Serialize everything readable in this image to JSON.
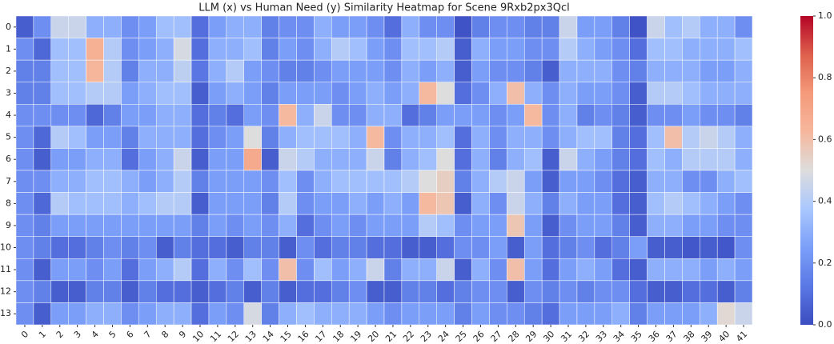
{
  "chart_data": {
    "type": "heatmap",
    "title": "LLM (x) vs Human Need (y) Similarity Heatmap for Scene 9Rxb2px3Qcl",
    "x_categories": [
      "0",
      "1",
      "2",
      "3",
      "4",
      "5",
      "6",
      "7",
      "8",
      "9",
      "10",
      "11",
      "12",
      "13",
      "14",
      "15",
      "16",
      "17",
      "18",
      "19",
      "20",
      "21",
      "22",
      "23",
      "24",
      "25",
      "26",
      "27",
      "28",
      "29",
      "30",
      "31",
      "32",
      "33",
      "34",
      "35",
      "36",
      "37",
      "38",
      "39",
      "40",
      "41"
    ],
    "y_categories": [
      "0",
      "1",
      "2",
      "3",
      "4",
      "5",
      "6",
      "7",
      "8",
      "9",
      "10",
      "11",
      "12",
      "13"
    ],
    "values": [
      [
        0.05,
        0.2,
        0.45,
        0.45,
        0.3,
        0.3,
        0.2,
        0.25,
        0.35,
        0.35,
        0.1,
        0.25,
        0.3,
        0.3,
        0.15,
        0.2,
        0.2,
        0.3,
        0.25,
        0.25,
        0.2,
        0.1,
        0.3,
        0.2,
        0.2,
        0.02,
        0.15,
        0.2,
        0.2,
        0.15,
        0.15,
        0.45,
        0.25,
        0.25,
        0.15,
        0.02,
        0.45,
        0.35,
        0.4,
        0.3,
        0.3,
        0.2
      ],
      [
        0.2,
        0.08,
        0.35,
        0.35,
        0.65,
        0.4,
        0.2,
        0.25,
        0.3,
        0.48,
        0.1,
        0.3,
        0.3,
        0.35,
        0.15,
        0.25,
        0.2,
        0.3,
        0.4,
        0.35,
        0.25,
        0.2,
        0.35,
        0.35,
        0.4,
        0.05,
        0.3,
        0.25,
        0.25,
        0.2,
        0.2,
        0.4,
        0.3,
        0.25,
        0.2,
        0.1,
        0.35,
        0.35,
        0.3,
        0.3,
        0.3,
        0.35
      ],
      [
        0.15,
        0.15,
        0.35,
        0.35,
        0.63,
        0.4,
        0.15,
        0.3,
        0.3,
        0.42,
        0.12,
        0.3,
        0.4,
        0.25,
        0.2,
        0.15,
        0.15,
        0.2,
        0.25,
        0.25,
        0.25,
        0.2,
        0.3,
        0.25,
        0.3,
        0.05,
        0.25,
        0.2,
        0.2,
        0.15,
        0.05,
        0.3,
        0.3,
        0.3,
        0.2,
        0.15,
        0.3,
        0.3,
        0.3,
        0.25,
        0.25,
        0.3
      ],
      [
        0.15,
        0.15,
        0.35,
        0.35,
        0.4,
        0.4,
        0.25,
        0.3,
        0.35,
        0.35,
        0.05,
        0.25,
        0.3,
        0.25,
        0.15,
        0.25,
        0.25,
        0.25,
        0.2,
        0.25,
        0.3,
        0.25,
        0.3,
        0.62,
        0.5,
        0.1,
        0.2,
        0.3,
        0.6,
        0.3,
        0.2,
        0.3,
        0.25,
        0.25,
        0.2,
        0.05,
        0.4,
        0.4,
        0.35,
        0.3,
        0.3,
        0.3
      ],
      [
        0.2,
        0.2,
        0.2,
        0.2,
        0.08,
        0.15,
        0.25,
        0.25,
        0.3,
        0.3,
        0.1,
        0.15,
        0.1,
        0.25,
        0.2,
        0.62,
        0.3,
        0.45,
        0.2,
        0.2,
        0.3,
        0.3,
        0.1,
        0.15,
        0.25,
        0.25,
        0.25,
        0.2,
        0.25,
        0.62,
        0.2,
        0.3,
        0.15,
        0.2,
        0.15,
        0.05,
        0.2,
        0.2,
        0.25,
        0.2,
        0.2,
        0.15
      ],
      [
        0.2,
        0.08,
        0.4,
        0.35,
        0.25,
        0.25,
        0.15,
        0.3,
        0.3,
        0.3,
        0.1,
        0.2,
        0.25,
        0.5,
        0.15,
        0.3,
        0.35,
        0.35,
        0.35,
        0.3,
        0.62,
        0.2,
        0.3,
        0.3,
        0.35,
        0.1,
        0.3,
        0.2,
        0.3,
        0.3,
        0.2,
        0.3,
        0.35,
        0.35,
        0.15,
        0.1,
        0.35,
        0.6,
        0.4,
        0.45,
        0.4,
        0.3
      ],
      [
        0.2,
        0.05,
        0.25,
        0.25,
        0.3,
        0.3,
        0.1,
        0.25,
        0.3,
        0.45,
        0.05,
        0.25,
        0.25,
        0.68,
        0.05,
        0.45,
        0.4,
        0.3,
        0.3,
        0.3,
        0.45,
        0.15,
        0.3,
        0.35,
        0.5,
        0.1,
        0.3,
        0.15,
        0.3,
        0.35,
        0.05,
        0.45,
        0.3,
        0.25,
        0.15,
        0.1,
        0.35,
        0.3,
        0.4,
        0.4,
        0.4,
        0.3
      ],
      [
        0.2,
        0.2,
        0.3,
        0.3,
        0.35,
        0.35,
        0.3,
        0.25,
        0.3,
        0.4,
        0.15,
        0.25,
        0.25,
        0.25,
        0.2,
        0.35,
        0.2,
        0.3,
        0.35,
        0.35,
        0.35,
        0.35,
        0.4,
        0.5,
        0.55,
        0.15,
        0.3,
        0.4,
        0.45,
        0.25,
        0.05,
        0.25,
        0.25,
        0.2,
        0.1,
        0.05,
        0.3,
        0.3,
        0.2,
        0.2,
        0.3,
        0.35
      ],
      [
        0.2,
        0.08,
        0.4,
        0.35,
        0.35,
        0.35,
        0.3,
        0.35,
        0.4,
        0.4,
        0.05,
        0.25,
        0.25,
        0.25,
        0.15,
        0.4,
        0.2,
        0.25,
        0.25,
        0.3,
        0.25,
        0.3,
        0.25,
        0.62,
        0.58,
        0.05,
        0.3,
        0.2,
        0.45,
        0.3,
        0.15,
        0.3,
        0.25,
        0.25,
        0.1,
        0.05,
        0.35,
        0.4,
        0.35,
        0.3,
        0.25,
        0.2
      ],
      [
        0.2,
        0.15,
        0.25,
        0.25,
        0.25,
        0.25,
        0.25,
        0.25,
        0.25,
        0.25,
        0.15,
        0.25,
        0.2,
        0.25,
        0.2,
        0.3,
        0.1,
        0.2,
        0.25,
        0.2,
        0.25,
        0.25,
        0.25,
        0.4,
        0.35,
        0.2,
        0.25,
        0.25,
        0.58,
        0.25,
        0.05,
        0.2,
        0.25,
        0.25,
        0.15,
        0.05,
        0.3,
        0.3,
        0.25,
        0.25,
        0.2,
        0.2
      ],
      [
        0.2,
        0.15,
        0.1,
        0.1,
        0.15,
        0.2,
        0.15,
        0.2,
        0.05,
        0.15,
        0.1,
        0.1,
        0.05,
        0.15,
        0.15,
        0.05,
        0.2,
        0.1,
        0.15,
        0.15,
        0.1,
        0.1,
        0.05,
        0.05,
        0.1,
        0.2,
        0.2,
        0.25,
        0.05,
        0.25,
        0.1,
        0.15,
        0.2,
        0.1,
        0.15,
        0.25,
        0.05,
        0.05,
        0.03,
        0.05,
        0.03,
        0.2
      ],
      [
        0.2,
        0.05,
        0.25,
        0.25,
        0.2,
        0.25,
        0.1,
        0.25,
        0.3,
        0.4,
        0.1,
        0.3,
        0.2,
        0.35,
        0.2,
        0.6,
        0.2,
        0.35,
        0.25,
        0.3,
        0.45,
        0.15,
        0.3,
        0.3,
        0.45,
        0.05,
        0.3,
        0.2,
        0.6,
        0.25,
        0.1,
        0.25,
        0.3,
        0.25,
        0.1,
        0.05,
        0.3,
        0.3,
        0.3,
        0.25,
        0.3,
        0.25
      ],
      [
        0.2,
        0.15,
        0.05,
        0.05,
        0.15,
        0.15,
        0.05,
        0.15,
        0.1,
        0.1,
        0.05,
        0.1,
        0.15,
        0.05,
        0.15,
        0.05,
        0.1,
        0.1,
        0.15,
        0.2,
        0.05,
        0.05,
        0.15,
        0.15,
        0.1,
        0.15,
        0.2,
        0.2,
        0.05,
        0.2,
        0.15,
        0.2,
        0.15,
        0.2,
        0.2,
        0.1,
        0.05,
        0.05,
        0.1,
        0.1,
        0.05,
        0.15
      ],
      [
        0.2,
        0.05,
        0.25,
        0.25,
        0.3,
        0.3,
        0.2,
        0.25,
        0.3,
        0.3,
        0.1,
        0.25,
        0.2,
        0.48,
        0.15,
        0.3,
        0.35,
        0.3,
        0.3,
        0.3,
        0.25,
        0.2,
        0.25,
        0.25,
        0.25,
        0.15,
        0.25,
        0.2,
        0.2,
        0.15,
        0.1,
        0.25,
        0.25,
        0.25,
        0.3,
        0.15,
        0.25,
        0.25,
        0.25,
        0.3,
        0.52,
        0.45
      ]
    ],
    "colormap": "coolwarm",
    "zlim": [
      0,
      1
    ],
    "colorbar_ticks": [
      {
        "value": 0,
        "label": "0.0"
      },
      {
        "value": 0.2,
        "label": "0.2"
      },
      {
        "value": 0.4,
        "label": "0.4"
      },
      {
        "value": 0.6,
        "label": "0.6"
      },
      {
        "value": 0.8,
        "label": "0.8"
      },
      {
        "value": 1,
        "label": "1.0"
      }
    ]
  }
}
